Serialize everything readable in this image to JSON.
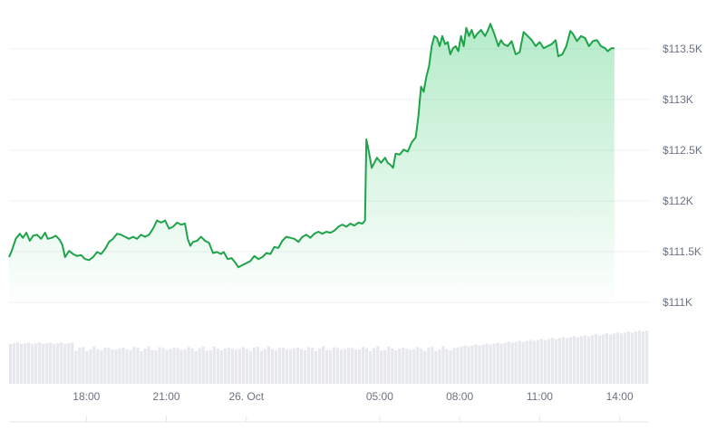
{
  "chart_data": {
    "type": "area",
    "subtype": "price-line-with-volume",
    "x_tick_labels": [
      "18:00",
      "21:00",
      "26. Oct",
      "05:00",
      "08:00",
      "11:00",
      "14:00"
    ],
    "x_tick_hours": [
      18,
      21,
      24,
      29,
      32,
      35,
      38
    ],
    "x_range_hours": [
      15.1,
      39.1
    ],
    "y_tick_labels": [
      "$111K",
      "$111.5K",
      "$112K",
      "$112.5K",
      "$113K",
      "$113.5K"
    ],
    "y_ticks": [
      111000,
      111500,
      112000,
      112500,
      113000,
      113500
    ],
    "ylim": [
      111000,
      113600
    ],
    "grid": true,
    "colors": {
      "line": "#1fa34a",
      "area_top": "#22c55e",
      "grid": "#eef0f3",
      "tick_text": "#6b7280",
      "volume": "#e6e8ec"
    },
    "series": [
      {
        "values": [
          [
            15.1,
            111420
          ],
          [
            15.2,
            111480
          ],
          [
            15.35,
            111600
          ],
          [
            15.5,
            111650
          ],
          [
            15.62,
            111610
          ],
          [
            15.75,
            111660
          ],
          [
            15.88,
            111580
          ],
          [
            16.0,
            111630
          ],
          [
            16.15,
            111640
          ],
          [
            16.3,
            111600
          ],
          [
            16.45,
            111660
          ],
          [
            16.55,
            111600
          ],
          [
            16.7,
            111610
          ],
          [
            16.85,
            111630
          ],
          [
            17.0,
            111590
          ],
          [
            17.1,
            111540
          ],
          [
            17.2,
            111420
          ],
          [
            17.35,
            111480
          ],
          [
            17.5,
            111450
          ],
          [
            17.65,
            111430
          ],
          [
            17.8,
            111440
          ],
          [
            17.95,
            111400
          ],
          [
            18.1,
            111390
          ],
          [
            18.25,
            111420
          ],
          [
            18.4,
            111470
          ],
          [
            18.55,
            111450
          ],
          [
            18.7,
            111500
          ],
          [
            18.85,
            111570
          ],
          [
            19.0,
            111600
          ],
          [
            19.15,
            111650
          ],
          [
            19.3,
            111640
          ],
          [
            19.45,
            111620
          ],
          [
            19.6,
            111600
          ],
          [
            19.75,
            111620
          ],
          [
            19.9,
            111600
          ],
          [
            20.05,
            111640
          ],
          [
            20.2,
            111620
          ],
          [
            20.35,
            111640
          ],
          [
            20.5,
            111700
          ],
          [
            20.65,
            111780
          ],
          [
            20.8,
            111760
          ],
          [
            20.95,
            111780
          ],
          [
            21.1,
            111700
          ],
          [
            21.25,
            111720
          ],
          [
            21.4,
            111760
          ],
          [
            21.55,
            111740
          ],
          [
            21.7,
            111750
          ],
          [
            21.8,
            111600
          ],
          [
            21.9,
            111530
          ],
          [
            22.0,
            111570
          ],
          [
            22.15,
            111580
          ],
          [
            22.3,
            111620
          ],
          [
            22.45,
            111580
          ],
          [
            22.6,
            111560
          ],
          [
            22.75,
            111460
          ],
          [
            22.9,
            111470
          ],
          [
            23.05,
            111450
          ],
          [
            23.15,
            111470
          ],
          [
            23.3,
            111400
          ],
          [
            23.45,
            111410
          ],
          [
            23.6,
            111360
          ],
          [
            23.7,
            111320
          ],
          [
            23.85,
            111340
          ],
          [
            24.0,
            111360
          ],
          [
            24.15,
            111380
          ],
          [
            24.3,
            111430
          ],
          [
            24.45,
            111400
          ],
          [
            24.6,
            111420
          ],
          [
            24.75,
            111460
          ],
          [
            24.9,
            111450
          ],
          [
            25.05,
            111520
          ],
          [
            25.2,
            111510
          ],
          [
            25.35,
            111580
          ],
          [
            25.5,
            111620
          ],
          [
            25.65,
            111610
          ],
          [
            25.8,
            111600
          ],
          [
            25.95,
            111570
          ],
          [
            26.1,
            111620
          ],
          [
            26.25,
            111640
          ],
          [
            26.4,
            111610
          ],
          [
            26.55,
            111650
          ],
          [
            26.7,
            111670
          ],
          [
            26.85,
            111650
          ],
          [
            27.0,
            111670
          ],
          [
            27.15,
            111660
          ],
          [
            27.3,
            111680
          ],
          [
            27.45,
            111720
          ],
          [
            27.6,
            111740
          ],
          [
            27.75,
            111720
          ],
          [
            27.9,
            111750
          ],
          [
            28.05,
            111730
          ],
          [
            28.2,
            111760
          ],
          [
            28.35,
            111750
          ],
          [
            28.45,
            111780
          ],
          [
            28.5,
            112580
          ],
          [
            28.6,
            112450
          ],
          [
            28.7,
            112300
          ],
          [
            28.8,
            112350
          ],
          [
            28.9,
            112400
          ],
          [
            29.05,
            112350
          ],
          [
            29.2,
            112400
          ],
          [
            29.3,
            112350
          ],
          [
            29.4,
            112330
          ],
          [
            29.5,
            112300
          ],
          [
            29.6,
            112440
          ],
          [
            29.75,
            112430
          ],
          [
            29.9,
            112480
          ],
          [
            30.05,
            112460
          ],
          [
            30.2,
            112550
          ],
          [
            30.35,
            112600
          ],
          [
            30.45,
            112800
          ],
          [
            30.55,
            113100
          ],
          [
            30.65,
            113050
          ],
          [
            30.75,
            113200
          ],
          [
            30.85,
            113300
          ],
          [
            30.95,
            113500
          ],
          [
            31.05,
            113600
          ],
          [
            31.15,
            113580
          ],
          [
            31.25,
            113500
          ],
          [
            31.35,
            113600
          ],
          [
            31.45,
            113520
          ],
          [
            31.55,
            113540
          ],
          [
            31.65,
            113420
          ],
          [
            31.75,
            113480
          ],
          [
            31.85,
            113500
          ],
          [
            31.95,
            113450
          ],
          [
            32.05,
            113600
          ],
          [
            32.15,
            113500
          ],
          [
            32.25,
            113680
          ],
          [
            32.35,
            113600
          ],
          [
            32.45,
            113660
          ],
          [
            32.55,
            113580
          ],
          [
            32.65,
            113620
          ],
          [
            32.8,
            113660
          ],
          [
            32.95,
            113600
          ],
          [
            33.05,
            113650
          ],
          [
            33.15,
            113720
          ],
          [
            33.3,
            113620
          ],
          [
            33.45,
            113500
          ],
          [
            33.55,
            113560
          ],
          [
            33.65,
            113520
          ],
          [
            33.8,
            113500
          ],
          [
            33.95,
            113550
          ],
          [
            34.1,
            113420
          ],
          [
            34.25,
            113440
          ],
          [
            34.4,
            113640
          ],
          [
            34.55,
            113600
          ],
          [
            34.7,
            113560
          ],
          [
            34.85,
            113500
          ],
          [
            35.0,
            113540
          ],
          [
            35.15,
            113480
          ],
          [
            35.3,
            113500
          ],
          [
            35.45,
            113520
          ],
          [
            35.6,
            113560
          ],
          [
            35.7,
            113400
          ],
          [
            35.85,
            113420
          ],
          [
            36.0,
            113500
          ],
          [
            36.15,
            113650
          ],
          [
            36.25,
            113620
          ],
          [
            36.4,
            113550
          ],
          [
            36.55,
            113600
          ],
          [
            36.7,
            113580
          ],
          [
            36.85,
            113500
          ],
          [
            37.0,
            113550
          ],
          [
            37.15,
            113560
          ],
          [
            37.3,
            113500
          ],
          [
            37.45,
            113480
          ],
          [
            37.55,
            113450
          ],
          [
            37.7,
            113480
          ],
          [
            37.8,
            113480
          ]
        ]
      }
    ]
  },
  "volume_bar_count": 176
}
